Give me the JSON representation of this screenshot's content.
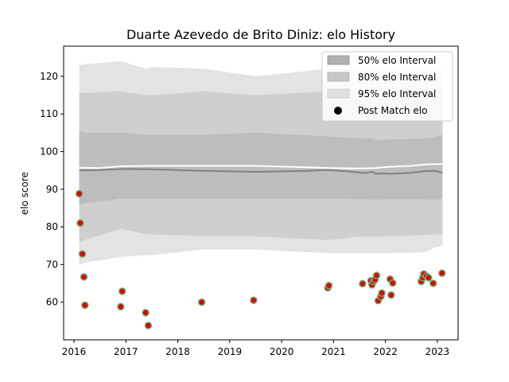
{
  "chart_data": {
    "type": "area",
    "title": "Duarte Azevedo de Brito Diniz: elo History",
    "xlabel": "",
    "ylabel": "elo score",
    "xlim": [
      2015.8,
      2023.4
    ],
    "ylim": [
      50,
      128
    ],
    "x_ticks": [
      {
        "value": 2016,
        "label": "2016"
      },
      {
        "value": 2017,
        "label": "2017"
      },
      {
        "value": 2018,
        "label": "2018"
      },
      {
        "value": 2019,
        "label": "2019"
      },
      {
        "value": 2020,
        "label": "2020"
      },
      {
        "value": 2021,
        "label": "2021"
      },
      {
        "value": 2022,
        "label": "2022"
      },
      {
        "value": 2023,
        "label": "2023"
      }
    ],
    "y_ticks": [
      {
        "value": 60,
        "label": "60"
      },
      {
        "value": 70,
        "label": "70"
      },
      {
        "value": 80,
        "label": "80"
      },
      {
        "value": 90,
        "label": "90"
      },
      {
        "value": 100,
        "label": "100"
      },
      {
        "value": 110,
        "label": "110"
      },
      {
        "value": 120,
        "label": "120"
      }
    ],
    "grid": false,
    "legend_position": "top-right",
    "legend": [
      {
        "label": "50% elo Interval",
        "kind": "patch",
        "color": "#b0b0b0"
      },
      {
        "label": "80% elo Interval",
        "kind": "patch",
        "color": "#c8c8c8"
      },
      {
        "label": "95% elo Interval",
        "kind": "patch",
        "color": "#e0e0e0"
      },
      {
        "label": "Post Match elo",
        "kind": "marker",
        "color": "#000000"
      }
    ],
    "band_x": [
      2016.1,
      2016.2,
      2016.9,
      2017.4,
      2017.5,
      2018.5,
      2019.5,
      2020.9,
      2021.55,
      2021.75,
      2021.82,
      2021.9,
      2022.1,
      2022.75,
      2022.95,
      2023.1
    ],
    "bands": {
      "p95_upper": [
        123,
        123.2,
        124,
        122,
        122.5,
        122,
        120,
        122,
        122.5,
        122.5,
        122.5,
        122.5,
        122.5,
        122,
        122,
        122
      ],
      "p95_lower": [
        70,
        70.5,
        72,
        72.5,
        72.5,
        74,
        74,
        73,
        73,
        73,
        72.8,
        73,
        73,
        73.2,
        74.5,
        75
      ],
      "p80_upper": [
        115.5,
        115.6,
        116,
        115,
        115,
        116,
        115,
        116,
        116.5,
        116.5,
        116.5,
        116.8,
        116.8,
        116.5,
        117,
        117
      ],
      "p80_lower": [
        76,
        76.5,
        79.5,
        78,
        78,
        77.5,
        77.5,
        76.5,
        77.5,
        77.5,
        77.3,
        77.5,
        77.5,
        77.8,
        78,
        78
      ],
      "p50_upper": [
        105.5,
        105,
        105,
        104.5,
        104.5,
        104.5,
        105,
        104,
        103.5,
        103.5,
        103,
        103,
        103.2,
        103.5,
        103.8,
        104.5
      ],
      "p50_lower": [
        86,
        86.2,
        87.5,
        87.5,
        87.5,
        87.5,
        87.5,
        87.5,
        87.3,
        87.3,
        87,
        87.3,
        87.3,
        87.3,
        87.2,
        87.5
      ]
    },
    "series": [
      {
        "kind": "line",
        "color": "#808080",
        "x": [
          2016.1,
          2016.5,
          2017.0,
          2017.5,
          2018.5,
          2019.5,
          2020.5,
          2020.9,
          2021.3,
          2021.6,
          2021.75,
          2021.82,
          2021.9,
          2022.1,
          2022.5,
          2022.75,
          2022.95,
          2023.1
        ],
        "y": [
          95,
          95.1,
          95.4,
          95.3,
          94.9,
          94.6,
          94.9,
          95.1,
          94.7,
          94.3,
          94.6,
          94.1,
          94.2,
          94.1,
          94.4,
          94.8,
          94.9,
          94.4
        ]
      },
      {
        "kind": "line",
        "color": "#ffffff",
        "x": [
          2016.1,
          2016.5,
          2016.9,
          2017.5,
          2018.5,
          2019.5,
          2020.5,
          2021.0,
          2021.5,
          2021.8,
          2022.0,
          2022.5,
          2022.8,
          2023.1
        ],
        "y": [
          95.7,
          95.6,
          96.1,
          96.2,
          96.2,
          96.2,
          95.8,
          95.6,
          95.5,
          95.6,
          95.9,
          96.2,
          96.6,
          96.7
        ]
      }
    ],
    "points": {
      "name": "Post Match elo",
      "fill": "#cc1100",
      "stroke": "#7aa87a",
      "x": [
        2016.1,
        2016.12,
        2016.16,
        2016.19,
        2016.21,
        2016.9,
        2016.93,
        2017.38,
        2017.43,
        2018.46,
        2019.46,
        2020.89,
        2020.91,
        2021.56,
        2021.72,
        2021.74,
        2021.77,
        2021.8,
        2021.83,
        2021.86,
        2021.91,
        2021.93,
        2022.09,
        2022.11,
        2022.14,
        2022.69,
        2022.72,
        2022.74,
        2022.79,
        2022.83,
        2022.92,
        2023.09
      ],
      "y": [
        88.8,
        81.0,
        72.8,
        66.7,
        59.2,
        58.8,
        62.9,
        57.2,
        53.8,
        60.0,
        60.5,
        63.8,
        64.4,
        64.9,
        65.7,
        64.6,
        65.5,
        66.0,
        67.1,
        60.4,
        61.5,
        62.4,
        66.1,
        61.9,
        65.1,
        65.5,
        66.5,
        67.5,
        66.9,
        66.5,
        65.0,
        67.7
      ]
    }
  }
}
